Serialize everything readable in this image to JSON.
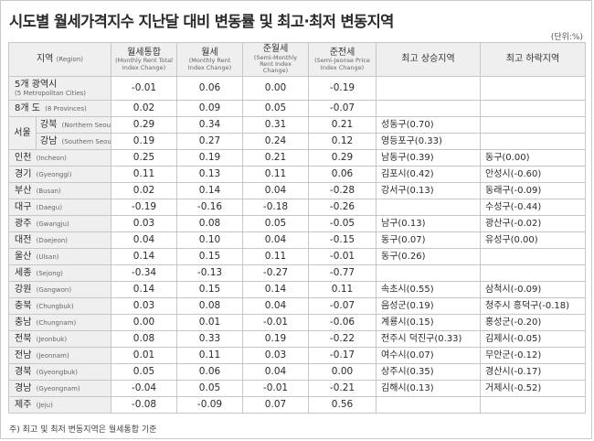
{
  "title": "시도별 월세가격지수 지난달 대비 변동률 및 최고·최저 변동지역",
  "unit": "(단위:%)",
  "headers": {
    "region": {
      "ko": "지역",
      "en": "(Region)"
    },
    "total": {
      "ko": "월세통합",
      "en": "(Monthly Rent Total Index Change)"
    },
    "monthly": {
      "ko": "월세",
      "en": "(Monthly Rent Index Change)"
    },
    "semi_monthly": {
      "ko": "준월세",
      "en": "(Semi-Monthly Rent Index Change)"
    },
    "semi_jeonse": {
      "ko": "준전세",
      "en": "(Semi-Jeonse Price Index Change)"
    },
    "highest": "최고 상승지역",
    "lowest": "최고 하락지역"
  },
  "seoul_label": "서울",
  "rows": [
    {
      "ko": "5개 광역시",
      "en": "(5 Metropolitan Cities)",
      "total": "-0.01",
      "monthly": "0.06",
      "semi_monthly": "0.00",
      "semi_jeonse": "-0.19",
      "high": "",
      "low": ""
    },
    {
      "ko": "8개 도",
      "en": "(8 Provinces)",
      "total": "0.02",
      "monthly": "0.09",
      "semi_monthly": "0.05",
      "semi_jeonse": "-0.07",
      "high": "",
      "low": ""
    },
    {
      "ko": "강북",
      "en": "(Northern Seoul)",
      "total": "0.29",
      "monthly": "0.34",
      "semi_monthly": "0.31",
      "semi_jeonse": "0.21",
      "high": "성동구(0.70)",
      "low": ""
    },
    {
      "ko": "강남",
      "en": "(Southern Seoul)",
      "total": "0.19",
      "monthly": "0.27",
      "semi_monthly": "0.24",
      "semi_jeonse": "0.12",
      "high": "영등포구(0.33)",
      "low": ""
    },
    {
      "ko": "인천",
      "en": "(Incheon)",
      "total": "0.25",
      "monthly": "0.19",
      "semi_monthly": "0.21",
      "semi_jeonse": "0.29",
      "high": "남동구(0.39)",
      "low": "동구(0.00)"
    },
    {
      "ko": "경기",
      "en": "(Gyeonggi)",
      "total": "0.11",
      "monthly": "0.13",
      "semi_monthly": "0.11",
      "semi_jeonse": "0.06",
      "high": "김포시(0.42)",
      "low": "안성시(-0.60)"
    },
    {
      "ko": "부산",
      "en": "(Busan)",
      "total": "0.02",
      "monthly": "0.14",
      "semi_monthly": "0.04",
      "semi_jeonse": "-0.28",
      "high": "강서구(0.13)",
      "low": "동래구(-0.09)"
    },
    {
      "ko": "대구",
      "en": "(Daegu)",
      "total": "-0.19",
      "monthly": "-0.16",
      "semi_monthly": "-0.18",
      "semi_jeonse": "-0.26",
      "high": "",
      "low": "수성구(-0.44)"
    },
    {
      "ko": "광주",
      "en": "(Gwangju)",
      "total": "0.03",
      "monthly": "0.08",
      "semi_monthly": "0.05",
      "semi_jeonse": "-0.05",
      "high": "남구(0.13)",
      "low": "광산구(-0.02)"
    },
    {
      "ko": "대전",
      "en": "(Daejeon)",
      "total": "0.04",
      "monthly": "0.10",
      "semi_monthly": "0.04",
      "semi_jeonse": "-0.15",
      "high": "동구(0.07)",
      "low": "유성구(0.00)"
    },
    {
      "ko": "울산",
      "en": "(Ulsan)",
      "total": "0.14",
      "monthly": "0.15",
      "semi_monthly": "0.11",
      "semi_jeonse": "-0.01",
      "high": "동구(0.26)",
      "low": ""
    },
    {
      "ko": "세종",
      "en": "(Sejong)",
      "total": "-0.34",
      "monthly": "-0.13",
      "semi_monthly": "-0.27",
      "semi_jeonse": "-0.77",
      "high": "",
      "low": ""
    },
    {
      "ko": "강원",
      "en": "(Gangwon)",
      "total": "0.14",
      "monthly": "0.15",
      "semi_monthly": "0.14",
      "semi_jeonse": "0.11",
      "high": "속초시(0.55)",
      "low": "삼척시(-0.09)"
    },
    {
      "ko": "충북",
      "en": "(Chungbuk)",
      "total": "0.03",
      "monthly": "0.08",
      "semi_monthly": "0.04",
      "semi_jeonse": "-0.07",
      "high": "음성군(0.19)",
      "low": "청주시 흥덕구(-0.18)"
    },
    {
      "ko": "충남",
      "en": "(Chungnam)",
      "total": "0.00",
      "monthly": "0.01",
      "semi_monthly": "-0.01",
      "semi_jeonse": "-0.06",
      "high": "계룡시(0.15)",
      "low": "홍성군(-0.20)"
    },
    {
      "ko": "전북",
      "en": "(Jeonbuk)",
      "total": "0.08",
      "monthly": "0.33",
      "semi_monthly": "0.19",
      "semi_jeonse": "-0.22",
      "high": "전주시 덕진구(0.33)",
      "low": "김제시(-0.05)"
    },
    {
      "ko": "전남",
      "en": "(Jeonnam)",
      "total": "0.01",
      "monthly": "0.11",
      "semi_monthly": "0.03",
      "semi_jeonse": "-0.17",
      "high": "여수시(0.07)",
      "low": "무안군(-0.12)"
    },
    {
      "ko": "경북",
      "en": "(Gyeongbuk)",
      "total": "0.05",
      "monthly": "0.06",
      "semi_monthly": "0.04",
      "semi_jeonse": "0.00",
      "high": "상주시(0.35)",
      "low": "경산시(-0.17)"
    },
    {
      "ko": "경남",
      "en": "(Gyeongnam)",
      "total": "-0.04",
      "monthly": "0.05",
      "semi_monthly": "-0.01",
      "semi_jeonse": "-0.21",
      "high": "김해시(0.13)",
      "low": "거제시(-0.52)"
    },
    {
      "ko": "제주",
      "en": "(Jeju)",
      "total": "-0.08",
      "monthly": "-0.09",
      "semi_monthly": "0.07",
      "semi_jeonse": "0.56",
      "high": "",
      "low": ""
    }
  ],
  "note": "주) 최고 및 최저 변동지역은 월세통합 기준"
}
